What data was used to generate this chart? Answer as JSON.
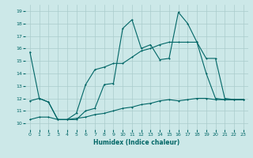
{
  "xlabel": "Humidex (Indice chaleur)",
  "ylabel": "",
  "background_color": "#cce8e8",
  "grid_color": "#aacccc",
  "line_color": "#006666",
  "xlim": [
    -0.5,
    23.5
  ],
  "ylim": [
    9.5,
    19.5
  ],
  "yticks": [
    10,
    11,
    12,
    13,
    14,
    15,
    16,
    17,
    18,
    19
  ],
  "xticks": [
    0,
    1,
    2,
    3,
    4,
    5,
    6,
    7,
    8,
    9,
    10,
    11,
    12,
    13,
    14,
    15,
    16,
    17,
    18,
    19,
    20,
    21,
    22,
    23
  ],
  "line1_x": [
    0,
    1,
    2,
    3,
    4,
    5,
    6,
    7,
    8,
    9,
    10,
    11,
    12,
    13,
    14,
    15,
    16,
    17,
    18,
    19,
    20,
    21,
    22,
    23
  ],
  "line1_y": [
    15.7,
    12.0,
    11.7,
    10.3,
    10.3,
    10.3,
    11.0,
    11.2,
    13.1,
    13.2,
    17.6,
    18.3,
    16.0,
    16.3,
    15.1,
    15.2,
    18.9,
    18.0,
    16.5,
    14.0,
    12.0,
    11.9,
    11.9,
    11.9
  ],
  "line2_x": [
    0,
    1,
    2,
    3,
    4,
    5,
    6,
    7,
    8,
    9,
    10,
    11,
    12,
    13,
    14,
    15,
    16,
    17,
    18,
    19,
    20,
    21,
    22,
    23
  ],
  "line2_y": [
    11.8,
    12.0,
    11.7,
    10.3,
    10.3,
    10.8,
    13.1,
    14.3,
    14.5,
    14.8,
    14.8,
    15.3,
    15.8,
    16.0,
    16.3,
    16.5,
    16.5,
    16.5,
    16.5,
    15.2,
    15.2,
    12.0,
    11.9,
    11.9
  ],
  "line3_x": [
    0,
    1,
    2,
    3,
    4,
    5,
    6,
    7,
    8,
    9,
    10,
    11,
    12,
    13,
    14,
    15,
    16,
    17,
    18,
    19,
    20,
    21,
    22,
    23
  ],
  "line3_y": [
    10.3,
    10.5,
    10.5,
    10.3,
    10.3,
    10.4,
    10.5,
    10.7,
    10.8,
    11.0,
    11.2,
    11.3,
    11.5,
    11.6,
    11.8,
    11.9,
    11.8,
    11.9,
    12.0,
    12.0,
    11.9,
    11.9,
    11.9,
    11.9
  ],
  "figwidth": 3.2,
  "figheight": 2.0,
  "dpi": 100
}
